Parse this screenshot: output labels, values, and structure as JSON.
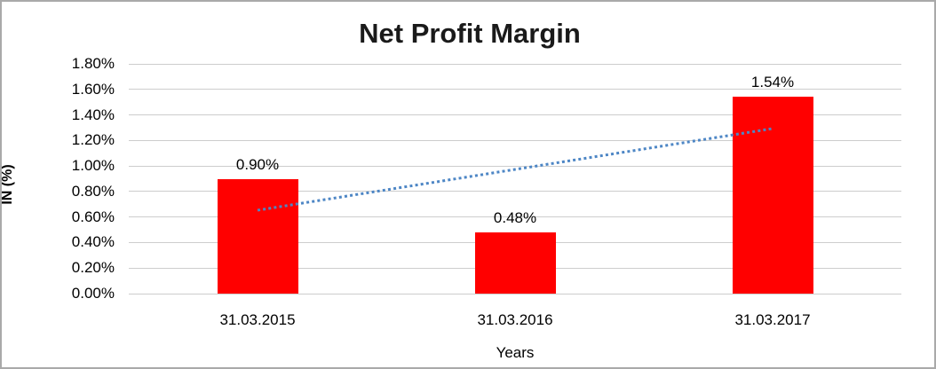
{
  "chart_data": {
    "type": "bar",
    "title": "Net Profit Margin",
    "xlabel": "Years",
    "ylabel": "IN (%)",
    "categories": [
      "31.03.2015",
      "31.03.2016",
      "31.03.2017"
    ],
    "values": [
      0.9,
      0.48,
      1.54
    ],
    "data_labels": [
      "0.90%",
      "0.48%",
      "1.54%"
    ],
    "ylim": [
      0,
      1.8
    ],
    "ytick_step": 0.2,
    "ytick_labels": [
      "0.00%",
      "0.20%",
      "0.40%",
      "0.60%",
      "0.80%",
      "1.00%",
      "1.20%",
      "1.40%",
      "1.60%",
      "1.80%"
    ],
    "grid": true,
    "legend": "none",
    "bar_color": "#ff0000",
    "gridline_color": "#cdcdcd",
    "trendline": {
      "type": "linear",
      "style": "dotted",
      "color": "#4d86c5",
      "start_value": 0.653,
      "end_value": 1.293
    }
  }
}
